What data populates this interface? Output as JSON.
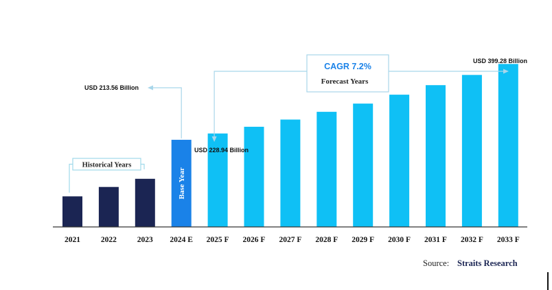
{
  "chart_data": {
    "type": "bar",
    "categories": [
      "2021",
      "2022",
      "2023",
      "2024 E",
      "2025 F",
      "2026 F",
      "2027 F",
      "2028 F",
      "2029 F",
      "2030 F",
      "2031 F",
      "2032 F",
      "2033 F"
    ],
    "values": [
      75,
      98,
      118,
      213.56,
      228.94,
      245.4,
      263.1,
      282.0,
      302.3,
      324.1,
      347.4,
      372.5,
      399.28
    ],
    "segments": [
      "historical",
      "historical",
      "historical",
      "base",
      "forecast",
      "forecast",
      "forecast",
      "forecast",
      "forecast",
      "forecast",
      "forecast",
      "forecast",
      "forecast"
    ],
    "ylim": [
      0,
      420
    ],
    "grid": false,
    "legend": "none",
    "annotations": {
      "cagr": "CAGR 7.2%",
      "forecast_years": "Forecast Years",
      "historical_years": "Historical Years",
      "base_year": "Base Year",
      "base_value": "USD 213.56 Billion",
      "first_forecast_value": "USD 228.94 Billion",
      "last_forecast_value": "USD 399.28 Billion"
    },
    "source_label": "Source:",
    "source_name": "Straits Research",
    "colors": {
      "historical": "#1b2553",
      "base": "#1a82e8",
      "forecast": "#0fc0f5",
      "connector": "#a8d6ea",
      "bracket": "#9fd8ea",
      "axis": "#333333",
      "source_name": "#1b2553"
    }
  }
}
